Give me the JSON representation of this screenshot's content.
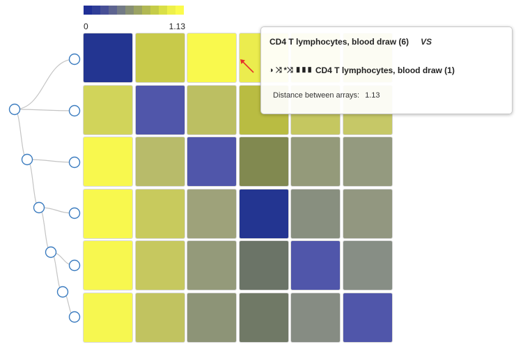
{
  "legend": {
    "min_label": "0",
    "max_label": "1.13",
    "colors": [
      "#1f2f96",
      "#2f3e98",
      "#474f96",
      "#5d6490",
      "#727a86",
      "#878f74",
      "#9ba363",
      "#b1b853",
      "#c5cc48",
      "#d9df46",
      "#eef04a",
      "#fbfb4c"
    ]
  },
  "heatmap": {
    "rows": 6,
    "cols": 6,
    "max_value": 1.13,
    "colors": [
      [
        "#233591",
        "#c8ca4a",
        "#f9f94d",
        "#ebec4e",
        "#d8da55",
        "#d2d45c"
      ],
      [
        "#d1d45a",
        "#5056aa",
        "#bcbf62",
        "#b9bc42",
        "#c5c760",
        "#c6c867"
      ],
      [
        "#f8f84e",
        "#b8bb6a",
        "#5056aa",
        "#818950",
        "#949a7a",
        "#949a7f"
      ],
      [
        "#f8f84e",
        "#c8ca5d",
        "#9ea27a",
        "#233591",
        "#888f7f",
        "#929780"
      ],
      [
        "#f7f74f",
        "#c6c85f",
        "#949a7a",
        "#6b7467",
        "#5056aa",
        "#878e85"
      ],
      [
        "#f6f750",
        "#c1c360",
        "#8d9477",
        "#707966",
        "#868c83",
        "#5056aa"
      ]
    ]
  },
  "tooltip": {
    "array_a": "CD4 T lymphocytes, blood draw (6)",
    "vs_label": "VS",
    "icons": "◑ ⤨ *⤨ ▮▮▮",
    "array_b": "CD4 T lymphocytes, blood draw (1)",
    "distance_label": "Distance between arrays:",
    "distance_value": "1.13"
  },
  "colors": {
    "node_stroke": "#3a7bbf",
    "dendrogram_line": "#c4c4c4",
    "pointer_arrow": "#e6322a"
  }
}
